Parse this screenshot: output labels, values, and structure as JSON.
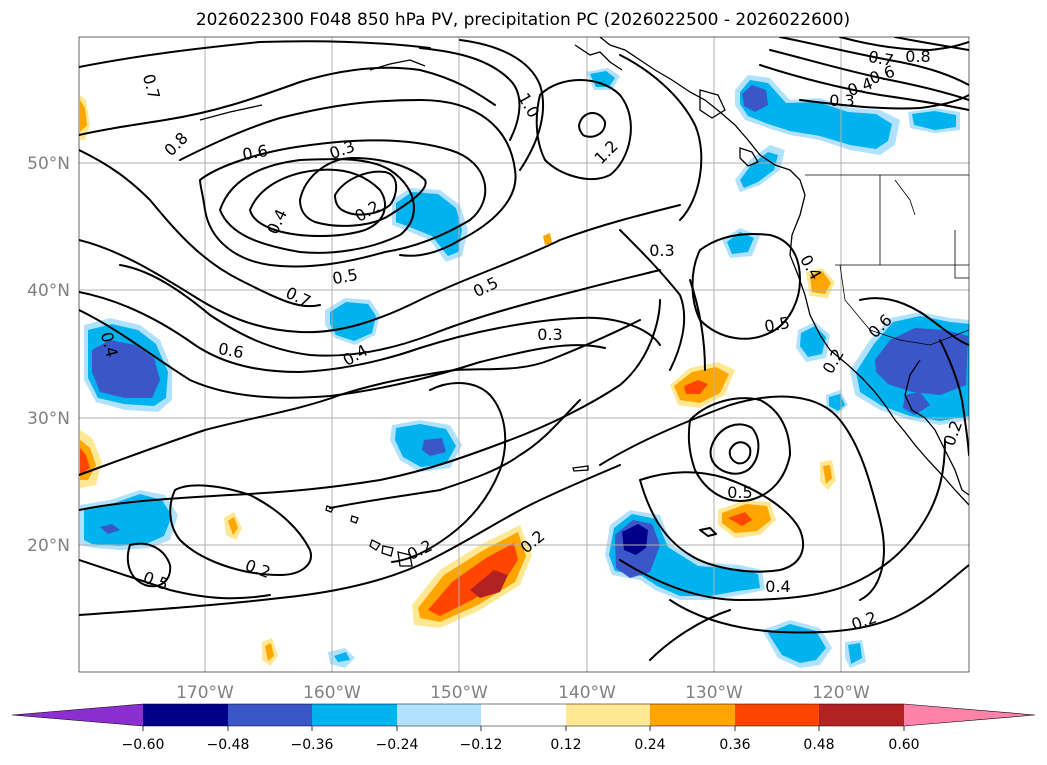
{
  "title": "2026022300 F048 850 hPa PV, precipitation PC (2026022500 - 2026022600)",
  "lon_labels": [
    "170°W",
    "160°W",
    "150°W",
    "140°W",
    "130°W",
    "120°W"
  ],
  "lat_labels": [
    "50°N",
    "40°N",
    "30°N",
    "20°N"
  ],
  "contour_labels": [
    "0.7",
    "0.8",
    "0.6",
    "0.3",
    "0.2",
    "0.4",
    "1.0",
    "1.2",
    "0.5",
    "0.7",
    "0.6",
    "0.4",
    "0.5",
    "0.3",
    "0.3",
    "0.5",
    "0.4",
    "0.5",
    "0.4",
    "0.2",
    "0.2",
    "0.2",
    "0.2",
    "0.5",
    "0.4",
    "0.2",
    "0.7",
    "0.8",
    "0.6",
    "0.4",
    "0.3",
    "0.6",
    "0.2"
  ],
  "colorbar": {
    "colors": [
      "#8b2fd1",
      "#00008b",
      "#3a56c9",
      "#00b2ee",
      "#b0e2ff",
      "#ffffff",
      "#ffe891",
      "#ffa500",
      "#ff4500",
      "#b22222",
      "#ff82ab"
    ],
    "tick_labels": [
      "−0.60",
      "−0.48",
      "−0.36",
      "−0.24",
      "−0.12",
      "0.12",
      "0.24",
      "0.36",
      "0.48",
      "0.60"
    ]
  }
}
